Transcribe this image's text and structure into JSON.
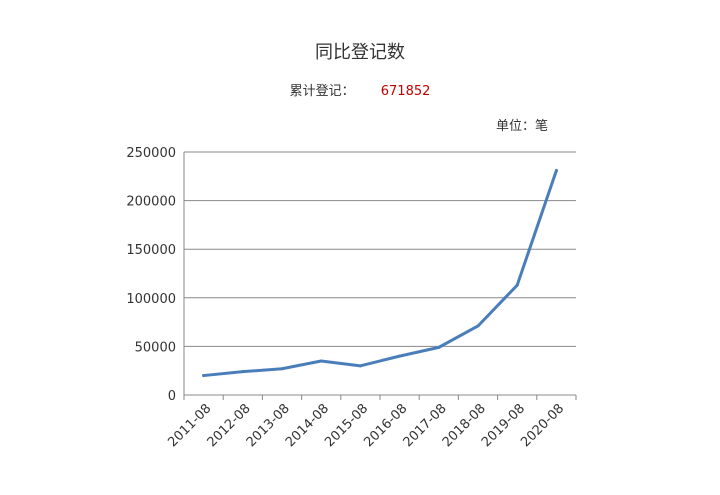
{
  "title": "同比登记数",
  "summary": {
    "label": "累计登记：",
    "value": "671852"
  },
  "unit": "单位：笔",
  "colors": {
    "line": "#4a7ebb",
    "grid": "#888888",
    "highlight": "#c00000"
  },
  "chart_data": {
    "type": "line",
    "title": "同比登记数",
    "xlabel": "",
    "ylabel": "",
    "categories": [
      "2011-08",
      "2012-08",
      "2013-08",
      "2014-08",
      "2015-08",
      "2016-08",
      "2017-08",
      "2018-08",
      "2019-08",
      "2020-08"
    ],
    "yticks": [
      "0",
      "50000",
      "100000",
      "150000",
      "200000",
      "250000"
    ],
    "ylim": [
      0,
      250000
    ],
    "grid": true,
    "series": [
      {
        "values": [
          20000,
          24000,
          27000,
          35000,
          30000,
          40000,
          49000,
          71000,
          113000,
          231000
        ]
      }
    ]
  }
}
